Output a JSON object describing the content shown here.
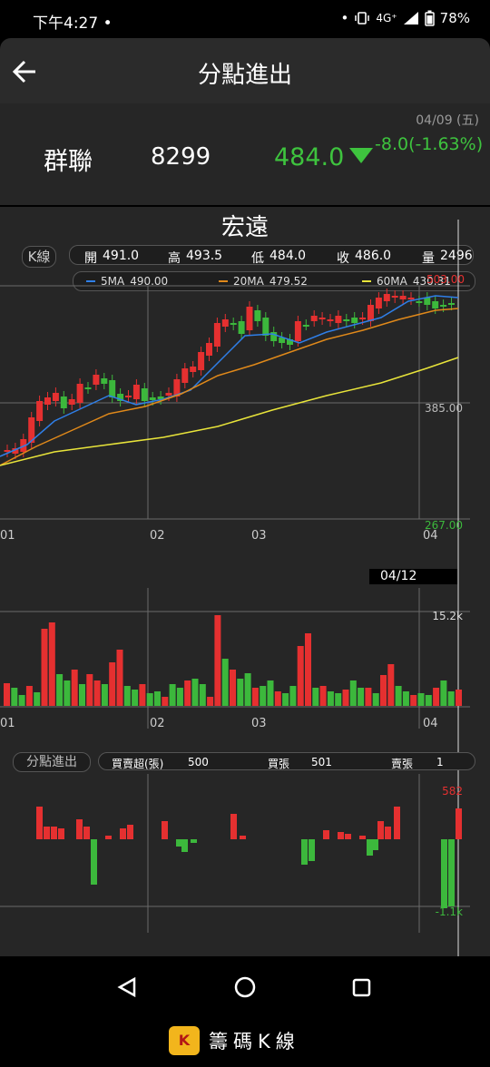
{
  "status_bar": {
    "time": "下午4:27",
    "dot": "•",
    "network": "4G⁺",
    "battery": "78%"
  },
  "header": {
    "title": "分點進出"
  },
  "quote": {
    "date": "04/09 (五)",
    "name": "群聯",
    "code": "8299",
    "price": "484.0",
    "change": "-8.0(-1.63%)"
  },
  "chart": {
    "stock_name": "宏遠",
    "tab_label": "K線",
    "ohlc": {
      "open_label": "開",
      "open": "491.0",
      "high_label": "高",
      "high": "493.5",
      "low_label": "低",
      "low": "484.0",
      "close_label": "收",
      "close": "486.0",
      "vol_label": "量",
      "vol": "2496"
    },
    "ma": [
      {
        "label": "5MA",
        "value": "490.00",
        "color": "#2f7fe8"
      },
      {
        "label": "20MA",
        "value": "479.52",
        "color": "#e0891a"
      },
      {
        "label": "60MA",
        "value": "430.31",
        "color": "#e8e43a"
      }
    ],
    "price_axis": [
      "385.00",
      "267.00"
    ],
    "price_axis_top": "503.00",
    "month_labels": [
      "01",
      "02",
      "03",
      "04"
    ],
    "volume_date": "04/12",
    "volume_axis": "15.2k",
    "indicator_tab": "分點進出",
    "indicator": {
      "net_label": "買賣超(張)",
      "net": "500",
      "buy_label": "買張",
      "buy": "501",
      "sell_label": "賣張",
      "sell": "1"
    },
    "indicator_axis": [
      "582",
      "-1.1k"
    ],
    "up_color": "#e53030",
    "down_color": "#3cb83c"
  },
  "brand": {
    "logo_text": "K",
    "name": "籌碼K線"
  },
  "icons": [
    "back-arrow-icon",
    "down-triangle-icon",
    "nav-back-icon",
    "nav-home-icon",
    "nav-recents-icon"
  ]
}
